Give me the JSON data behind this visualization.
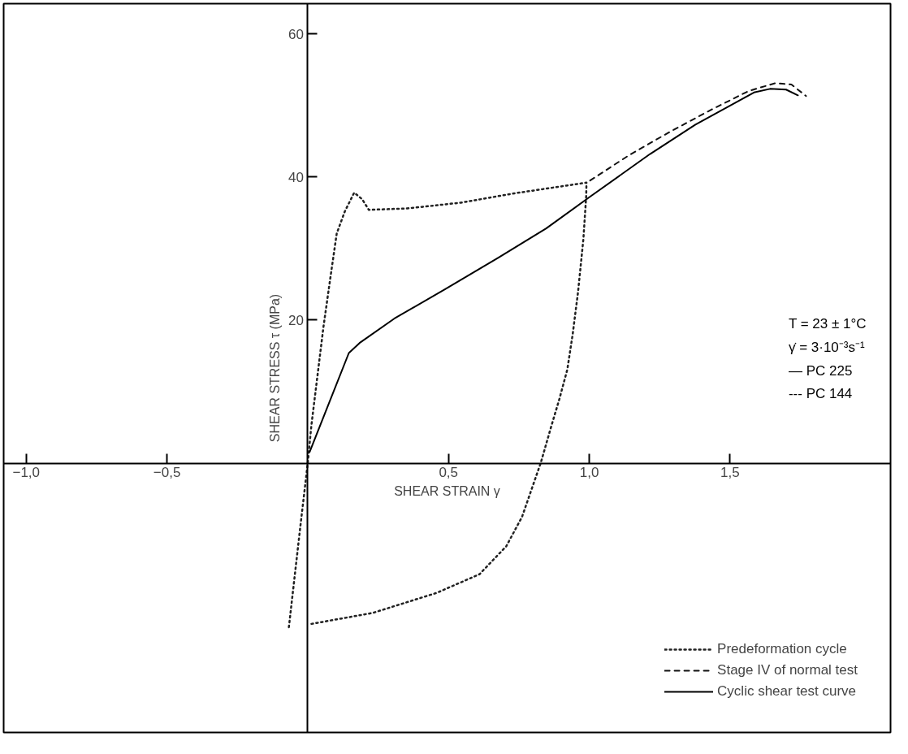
{
  "chart_data": {
    "type": "line",
    "xlabel": "SHEAR STRAIN γ",
    "ylabel": "SHEAR STRESS τ (MPa)",
    "xlim": [
      -1.08,
      2.07
    ],
    "ylim": [
      -37.6,
      64.2
    ],
    "xticks": [
      {
        "value": -1.0,
        "label": "−1,0"
      },
      {
        "value": -0.5,
        "label": "−0,5"
      },
      {
        "value": 0.5,
        "label": "0,5"
      },
      {
        "value": 1.0,
        "label": "1,0"
      },
      {
        "value": 1.5,
        "label": "1,5"
      }
    ],
    "yticks": [
      20,
      40,
      60
    ],
    "grid": false,
    "legend": "bottom right",
    "annotations": [
      "T = 23 ± 1°C",
      "γ̇ = 3·10⁻³s⁻¹",
      "— PC 225",
      "--- PC 144"
    ],
    "series": [
      {
        "name": "Predeformation cycle",
        "color": "#222222",
        "line_style": "dotted",
        "x": [
          -0.067,
          -0.025,
          0.0,
          0.013,
          0.056,
          0.08,
          0.103,
          0.132,
          0.165,
          0.193,
          0.217,
          0.354,
          0.544,
          0.733,
          0.99,
          0.989,
          0.979,
          0.96,
          0.941,
          0.922,
          0.894,
          0.866,
          0.828,
          0.761,
          0.705,
          0.61,
          0.458,
          0.231,
          0.004
        ],
        "values": [
          -22.9,
          -8.4,
          0.0,
          5.3,
          19.1,
          25.8,
          32.1,
          35.2,
          37.8,
          36.9,
          35.4,
          35.6,
          36.4,
          37.7,
          39.2,
          37.3,
          31.3,
          23.9,
          18.0,
          13.1,
          9.0,
          5.3,
          0.1,
          -7.5,
          -11.6,
          -15.5,
          -18.1,
          -20.9,
          -22.5
        ]
      },
      {
        "name": "Stage IV of normal test",
        "color": "#111111",
        "line_style": "dashed",
        "x": [
          1.003,
          1.14,
          1.282,
          1.434,
          1.566,
          1.661,
          1.718,
          1.77
        ],
        "values": [
          39.5,
          43.0,
          46.2,
          49.4,
          52.0,
          53.1,
          52.9,
          51.3
        ]
      },
      {
        "name": "Cyclic shear test curve",
        "color": "#000000",
        "line_style": "solid",
        "x": [
          0.007,
          0.146,
          0.184,
          0.307,
          0.487,
          0.676,
          0.847,
          0.998,
          1.216,
          1.377,
          1.585,
          1.642,
          1.699,
          1.741
        ],
        "values": [
          1.6,
          15.4,
          16.8,
          20.2,
          24.3,
          28.7,
          32.8,
          37.1,
          43.2,
          47.3,
          51.8,
          52.3,
          52.2,
          51.4
        ]
      }
    ]
  }
}
